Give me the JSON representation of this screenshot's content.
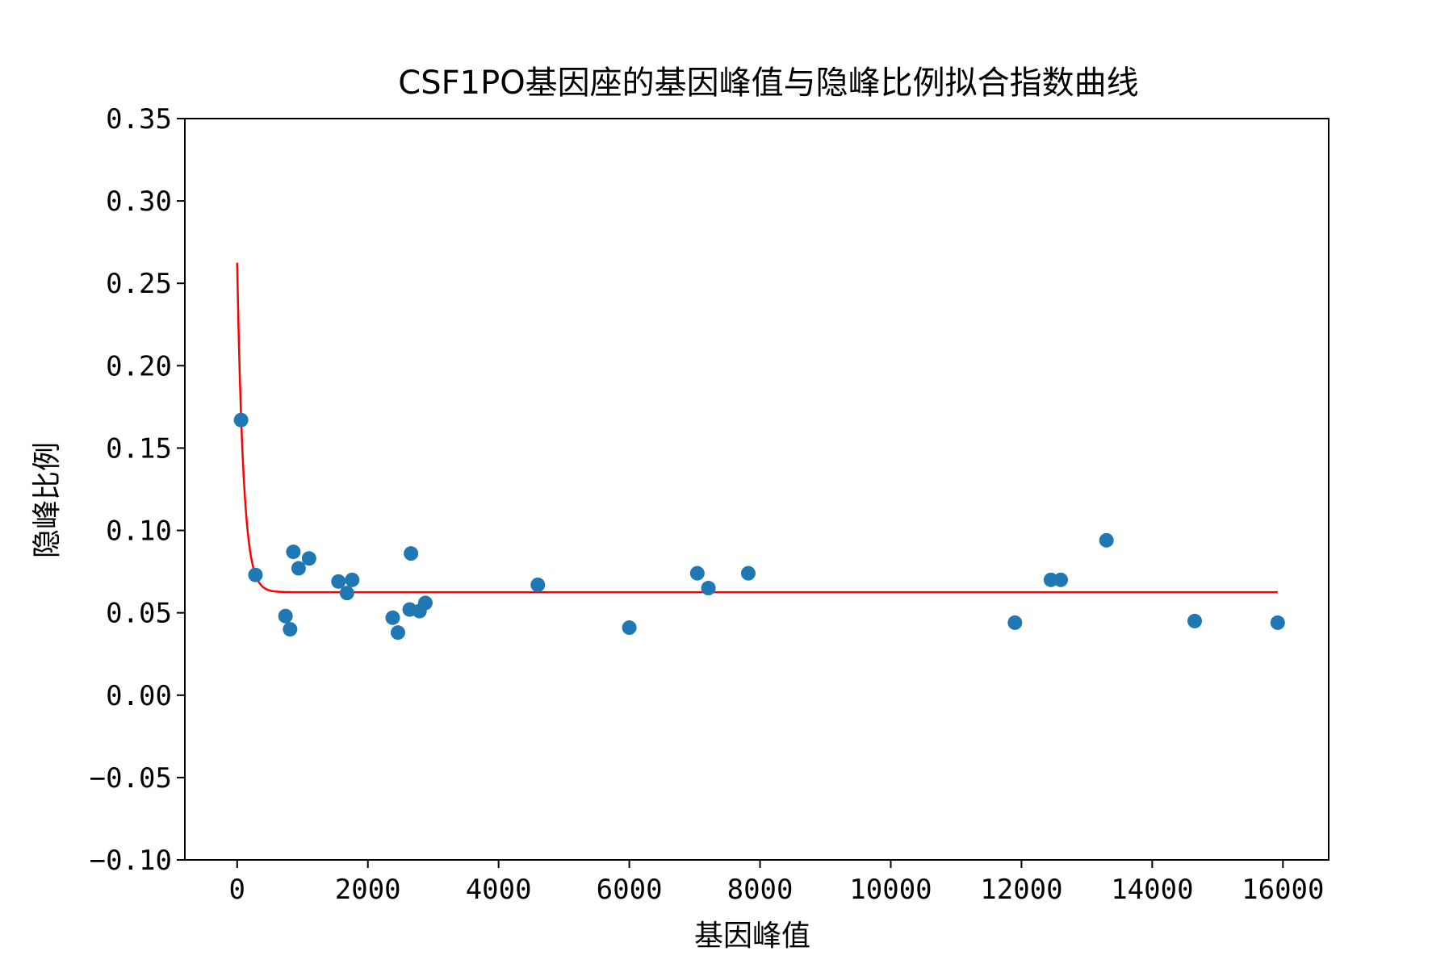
{
  "chart_data": {
    "type": "scatter",
    "title": "CSF1PO基因座的基因峰值与隐峰比例拟合指数曲线",
    "xlabel": "基因峰值",
    "ylabel": "隐峰比例",
    "xlim": [
      -800,
      16700
    ],
    "ylim": [
      -0.1,
      0.35
    ],
    "x_ticks": [
      0,
      2000,
      4000,
      6000,
      8000,
      10000,
      12000,
      14000,
      16000
    ],
    "x_tick_labels": [
      "0",
      "2000",
      "4000",
      "6000",
      "8000",
      "10000",
      "12000",
      "14000",
      "16000"
    ],
    "y_ticks": [
      -0.1,
      -0.05,
      0.0,
      0.05,
      0.1,
      0.15,
      0.2,
      0.25,
      0.3,
      0.35
    ],
    "y_tick_labels": [
      "−0.10",
      "−0.05",
      "0.00",
      "0.05",
      "0.10",
      "0.15",
      "0.20",
      "0.25",
      "0.30",
      "0.35"
    ],
    "grid": false,
    "series": [
      {
        "kind": "scatter",
        "color": "#1f77b4",
        "points": [
          [
            60,
            0.167
          ],
          [
            280,
            0.073
          ],
          [
            740,
            0.048
          ],
          [
            810,
            0.04
          ],
          [
            860,
            0.087
          ],
          [
            940,
            0.077
          ],
          [
            1100,
            0.083
          ],
          [
            1550,
            0.069
          ],
          [
            1680,
            0.062
          ],
          [
            1760,
            0.07
          ],
          [
            2380,
            0.047
          ],
          [
            2460,
            0.038
          ],
          [
            2640,
            0.052
          ],
          [
            2660,
            0.086
          ],
          [
            2790,
            0.051
          ],
          [
            2880,
            0.056
          ],
          [
            4600,
            0.067
          ],
          [
            6000,
            0.041
          ],
          [
            7040,
            0.074
          ],
          [
            7210,
            0.065
          ],
          [
            7820,
            0.074
          ],
          [
            11900,
            0.044
          ],
          [
            12450,
            0.07
          ],
          [
            12600,
            0.07
          ],
          [
            13300,
            0.094
          ],
          [
            14650,
            0.045
          ],
          [
            15920,
            0.044
          ]
        ]
      },
      {
        "kind": "line",
        "color": "#ff0000",
        "model": "a*exp(-b*x)+c",
        "a": 0.2,
        "b": 0.0105,
        "c": 0.0625,
        "x_range": [
          0,
          15920
        ]
      }
    ]
  }
}
